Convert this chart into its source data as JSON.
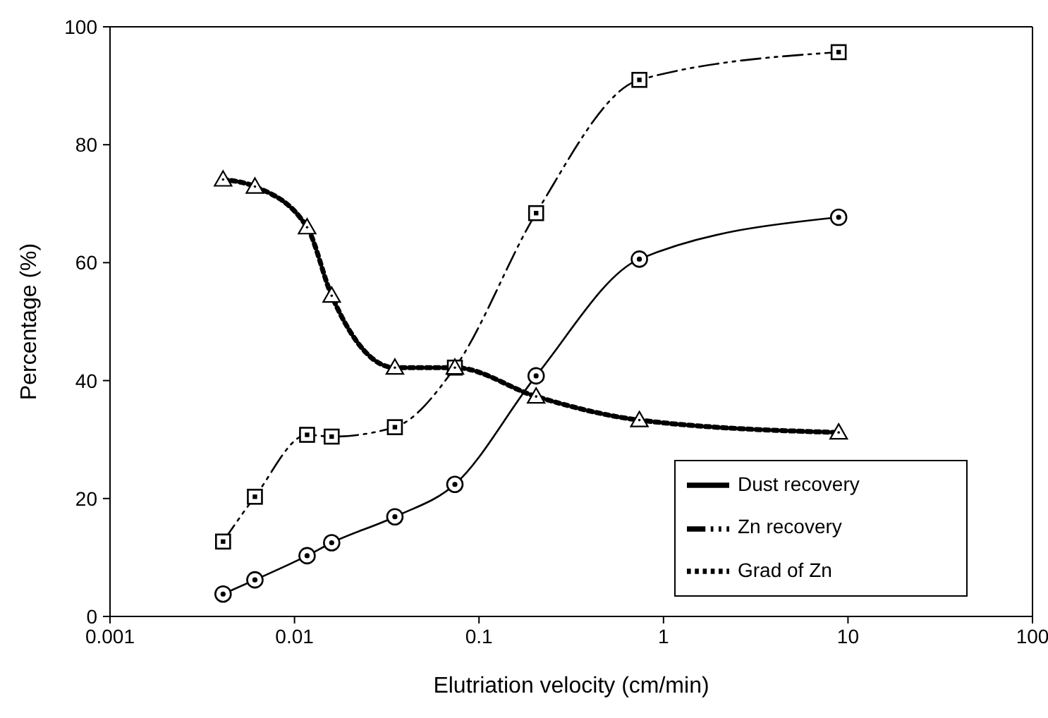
{
  "chart_data": {
    "type": "line",
    "xlabel": "Elutriation velocity (cm/min)",
    "ylabel": "Percentage (%)",
    "log": "x",
    "grid": false,
    "legend": "bottom right",
    "xlim": [
      0.001,
      100
    ],
    "xticks": [
      0.001,
      0.01,
      0.1,
      1,
      10,
      100
    ],
    "ylim": [
      0,
      100
    ],
    "yticks": [
      0,
      20,
      40,
      60,
      80,
      100
    ],
    "series": [
      {
        "name": "Dust recovery",
        "color": "#000000",
        "marker": "circle",
        "line_style": "solid",
        "x": [
          0.0041,
          0.0061,
          0.0117,
          0.0159,
          0.035,
          0.074,
          0.204,
          0.74,
          8.9
        ],
        "values": [
          3.8,
          6.2,
          10.3,
          12.5,
          16.9,
          22.4,
          40.8,
          60.6,
          67.7
        ]
      },
      {
        "name": "Zn recovery",
        "color": "#000000",
        "marker": "square",
        "line_style": "dashed",
        "x": [
          0.0041,
          0.0061,
          0.0117,
          0.0159,
          0.035,
          0.074,
          0.204,
          0.74,
          8.9
        ],
        "values": [
          12.7,
          20.3,
          30.8,
          30.5,
          32.1,
          42.2,
          68.4,
          91.0,
          95.7
        ]
      },
      {
        "name": "Grad of Zn",
        "color": "#000000",
        "marker": "triangle",
        "line_style": "dotted",
        "x": [
          0.0041,
          0.0061,
          0.0117,
          0.0159,
          0.035,
          0.074,
          0.204,
          0.74,
          8.9
        ],
        "values": [
          74.1,
          72.9,
          66.0,
          54.4,
          42.2,
          42.2,
          37.3,
          33.3,
          31.2
        ]
      }
    ]
  }
}
